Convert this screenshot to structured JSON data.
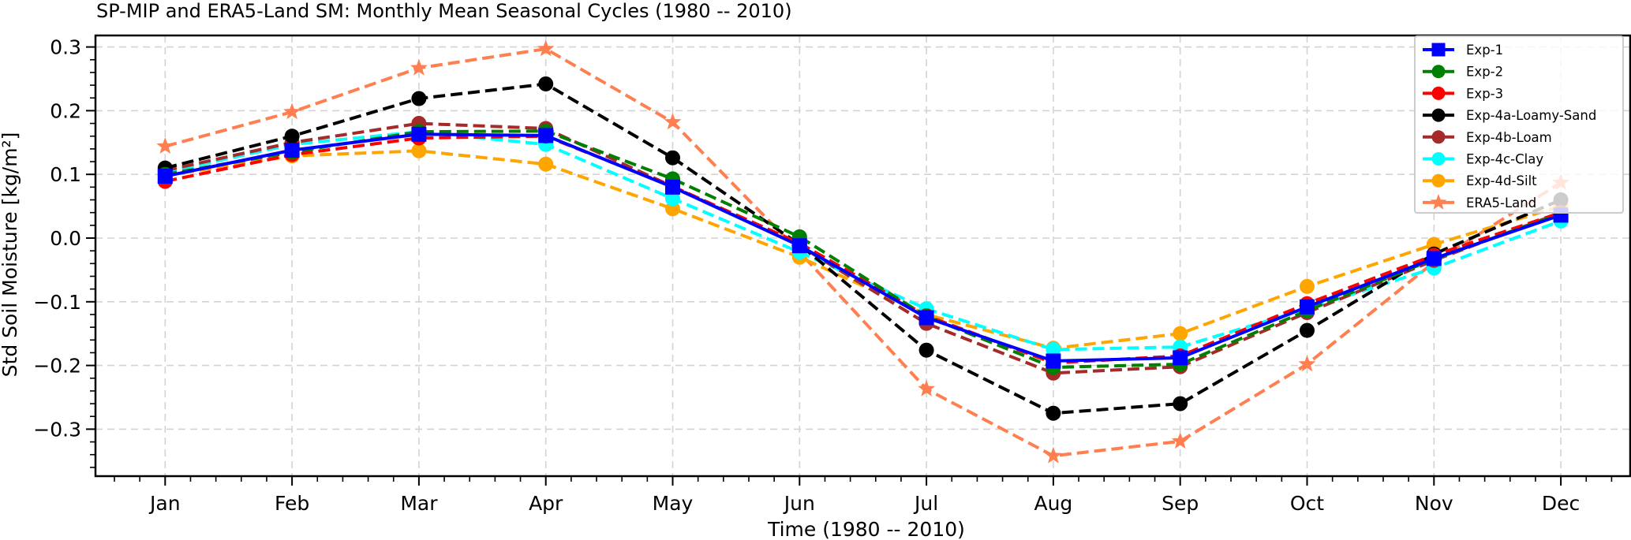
{
  "chart_data": {
    "type": "line",
    "title": "SP-MIP and ERA5-Land SM: Monthly Mean Seasonal Cycles (1980 -- 2010)",
    "xlabel": "Time (1980 -- 2010)",
    "ylabel": "Std Soil Moisture [kg/m²]",
    "categories": [
      "Jan",
      "Feb",
      "Mar",
      "Apr",
      "May",
      "Jun",
      "Jul",
      "Aug",
      "Sep",
      "Oct",
      "Nov",
      "Dec"
    ],
    "ylim": [
      -0.37,
      0.335
    ],
    "yticks": [
      0.3,
      0.2,
      0.1,
      0.0,
      -0.1,
      -0.2,
      -0.3
    ],
    "ytick_labels": [
      "0.3",
      "0.2",
      "0.1",
      "0.0",
      "−0.1",
      "−0.2",
      "−0.3"
    ],
    "grid": true,
    "legend_position": "top-right",
    "series": [
      {
        "name": "Exp-1",
        "color": "#0000ff",
        "linestyle": "solid",
        "marker": "square",
        "values": [
          0.097,
          0.138,
          0.163,
          0.161,
          0.08,
          -0.012,
          -0.125,
          -0.193,
          -0.188,
          -0.108,
          -0.032,
          0.036
        ]
      },
      {
        "name": "Exp-2",
        "color": "#008000",
        "linestyle": "dashed",
        "marker": "circle",
        "values": [
          0.1,
          0.135,
          0.167,
          0.168,
          0.093,
          0.002,
          -0.123,
          -0.203,
          -0.198,
          -0.114,
          -0.033,
          0.038
        ]
      },
      {
        "name": "Exp-3",
        "color": "#ff0000",
        "linestyle": "dashed",
        "marker": "circle",
        "values": [
          0.089,
          0.131,
          0.157,
          0.16,
          0.081,
          -0.008,
          -0.122,
          -0.196,
          -0.185,
          -0.103,
          -0.027,
          0.04
        ]
      },
      {
        "name": "Exp-4a-Loamy-Sand",
        "color": "#000000",
        "linestyle": "dashed",
        "marker": "circle",
        "values": [
          0.11,
          0.16,
          0.219,
          0.242,
          0.126,
          -0.01,
          -0.176,
          -0.275,
          -0.26,
          -0.145,
          -0.025,
          0.06
        ]
      },
      {
        "name": "Exp-4b-Loam",
        "color": "#a52a2a",
        "linestyle": "dashed",
        "marker": "circle",
        "values": [
          0.106,
          0.15,
          0.18,
          0.172,
          0.081,
          -0.012,
          -0.134,
          -0.212,
          -0.202,
          -0.117,
          -0.035,
          0.04
        ]
      },
      {
        "name": "Exp-4c-Clay",
        "color": "#00ffff",
        "linestyle": "dashed",
        "marker": "circle",
        "values": [
          0.103,
          0.147,
          0.167,
          0.147,
          0.062,
          -0.022,
          -0.111,
          -0.175,
          -0.171,
          -0.111,
          -0.047,
          0.027
        ]
      },
      {
        "name": "Exp-4d-Silt",
        "color": "#ffa500",
        "linestyle": "dashed",
        "marker": "circle",
        "values": [
          0.098,
          0.129,
          0.137,
          0.116,
          0.046,
          -0.03,
          -0.12,
          -0.173,
          -0.15,
          -0.076,
          -0.01,
          0.05
        ]
      },
      {
        "name": "ERA5-Land",
        "color": "#ff7f50",
        "linestyle": "dashed",
        "marker": "star",
        "values": [
          0.144,
          0.198,
          0.267,
          0.297,
          0.182,
          -0.022,
          -0.237,
          -0.342,
          -0.319,
          -0.198,
          -0.038,
          0.087
        ]
      }
    ]
  }
}
